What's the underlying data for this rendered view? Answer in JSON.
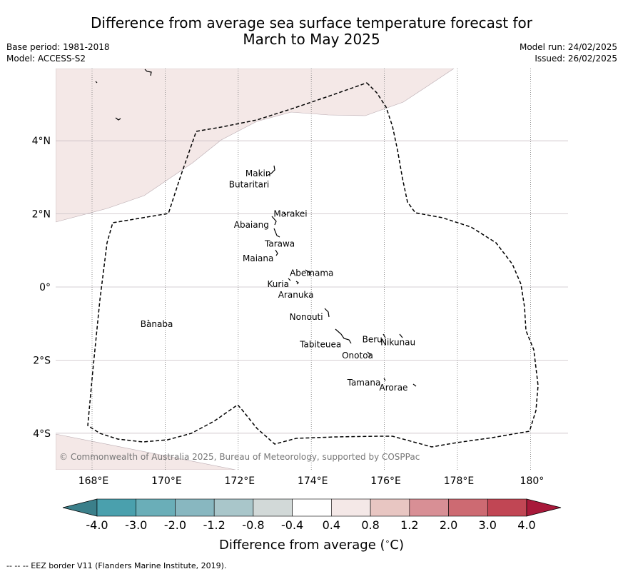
{
  "title": "Difference from average sea surface temperature forecast for March to May 2025",
  "title_line1": "Difference from average sea surface temperature forecast for",
  "title_line2": "March to May 2025",
  "meta_left": {
    "base_period": "Base period: 1981-2018",
    "model": "Model: ACCESS-S2"
  },
  "meta_right": {
    "model_run": "Model run: 24/02/2025",
    "issued": "Issued: 26/02/2025"
  },
  "map": {
    "lat_labels": [
      "4°N",
      "2°N",
      "0°",
      "2°S",
      "4°S"
    ],
    "lat_values": [
      4,
      2,
      0,
      -2,
      -4
    ],
    "lon_labels": [
      "168°E",
      "170°E",
      "172°E",
      "174°E",
      "176°E",
      "178°E",
      "180°"
    ],
    "lon_values": [
      168,
      170,
      172,
      174,
      176,
      178,
      180
    ],
    "lon_range": [
      167,
      181
    ],
    "lat_range": [
      -5,
      6
    ],
    "places": [
      {
        "name": "Makin",
        "lon": 172.9,
        "lat": 3.2
      },
      {
        "name": "Butaritari",
        "lon": 172.8,
        "lat": 2.9
      },
      {
        "name": "Marakei",
        "lon": 173.3,
        "lat": 2.0
      },
      {
        "name": "Abaiang",
        "lon": 172.8,
        "lat": 1.8
      },
      {
        "name": "Tarawa",
        "lon": 173.0,
        "lat": 1.4
      },
      {
        "name": "Maiana",
        "lon": 173.0,
        "lat": 0.9
      },
      {
        "name": "Abemama",
        "lon": 173.9,
        "lat": 0.4
      },
      {
        "name": "Kuria",
        "lon": 173.4,
        "lat": 0.2
      },
      {
        "name": "Aranuka",
        "lon": 173.6,
        "lat": 0.1
      },
      {
        "name": "Banaba",
        "lon": 169.5,
        "lat": -0.9
      },
      {
        "name": "Nonouti",
        "lon": 174.4,
        "lat": -0.7
      },
      {
        "name": "Tabiteuea",
        "lon": 174.8,
        "lat": -1.4
      },
      {
        "name": "Beru",
        "lon": 176.0,
        "lat": -1.3
      },
      {
        "name": "Nikunau",
        "lon": 176.4,
        "lat": -1.4
      },
      {
        "name": "Onotoa",
        "lon": 175.6,
        "lat": -1.8
      },
      {
        "name": "Tamana",
        "lon": 176.0,
        "lat": -2.5
      },
      {
        "name": "Arorae",
        "lon": 176.8,
        "lat": -2.6
      }
    ],
    "copyright": "© Commonwealth of Australia 2025, Bureau of Meteorology, supported by COSPPac"
  },
  "colorbar": {
    "labels": [
      "-4.0",
      "-3.0",
      "-2.0",
      "-1.2",
      "-0.8",
      "-0.4",
      "0.4",
      "0.8",
      "1.2",
      "2.0",
      "3.0",
      "4.0"
    ],
    "colors": [
      "#4aa0ad",
      "#6aaeb8",
      "#88b7c0",
      "#a9c6ca",
      "#d2d9d8",
      "#ffffff",
      "#f4e8e7",
      "#e8c6c2",
      "#d88f95",
      "#cd6a72",
      "#c14654"
    ],
    "under_color": "#3b7f8a",
    "over_color": "#a8193a",
    "title": "Difference from average (°C)",
    "title_prefix": "Difference from average (",
    "title_unit": "∘",
    "title_suffix": "C)"
  },
  "footnote": "--  --  -- EEZ border V11 (Flanders Marine Institute, 2019).",
  "colors": {
    "anomaly_fill": "#f4e8e7",
    "grid": "#c8bcc4",
    "eez": "#000000"
  }
}
